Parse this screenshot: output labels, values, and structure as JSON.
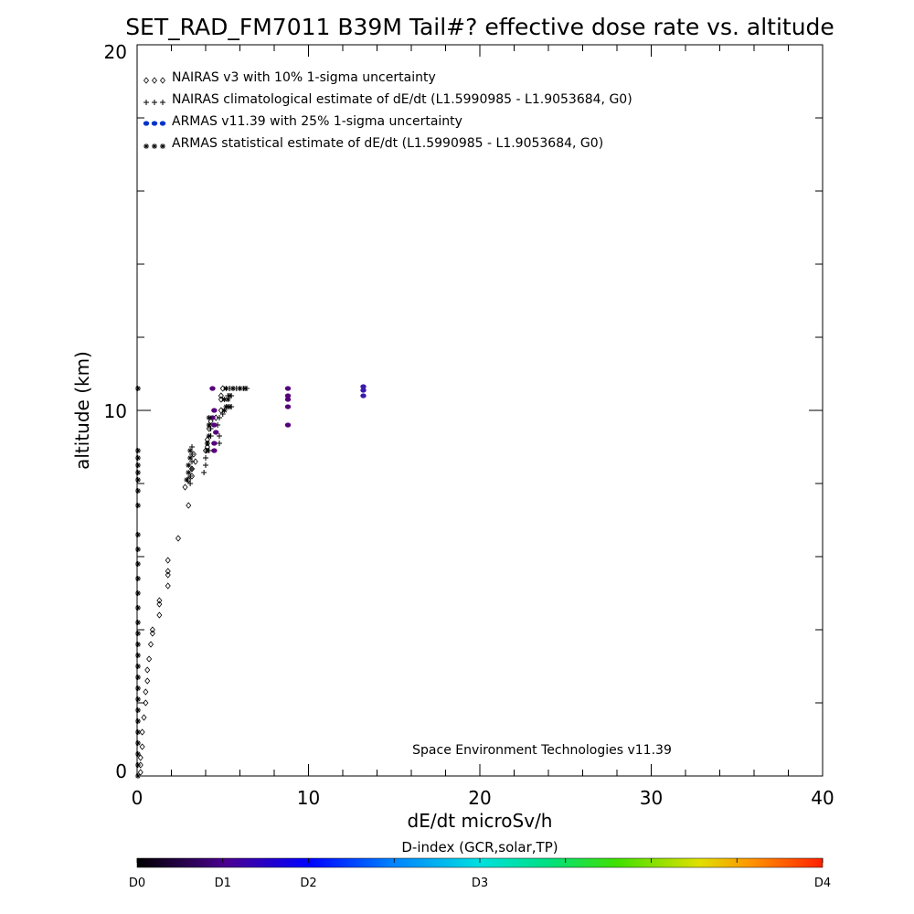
{
  "chart_data": {
    "type": "scatter",
    "title": "SET_RAD_FM7011  B39M Tail#? effective dose rate vs. altitude",
    "xlabel": "dE/dt microSv/h",
    "ylabel": "altitude (km)",
    "xlim": [
      0,
      40
    ],
    "ylim": [
      0,
      20
    ],
    "x_ticks": [
      "0",
      "10",
      "20",
      "30",
      "40"
    ],
    "y_ticks": [
      "0",
      "10",
      "20"
    ],
    "grid": false,
    "legend_position": "top-left",
    "annotation": "Space Environment Technologies v11.39",
    "series": [
      {
        "name": "NAIRAS v3 with 10% 1-sigma uncertainty",
        "marker": "diamond",
        "color": "#000000",
        "points": [
          [
            0.2,
            0.1
          ],
          [
            0.2,
            0.3
          ],
          [
            0.2,
            0.5
          ],
          [
            0.3,
            0.8
          ],
          [
            0.3,
            1.2
          ],
          [
            0.4,
            1.6
          ],
          [
            0.5,
            2.0
          ],
          [
            0.5,
            2.3
          ],
          [
            0.6,
            2.6
          ],
          [
            0.6,
            2.9
          ],
          [
            0.7,
            3.2
          ],
          [
            0.8,
            3.6
          ],
          [
            0.9,
            3.9
          ],
          [
            0.9,
            4.0
          ],
          [
            1.3,
            4.4
          ],
          [
            1.3,
            4.7
          ],
          [
            1.3,
            4.8
          ],
          [
            1.8,
            5.2
          ],
          [
            1.8,
            5.5
          ],
          [
            1.8,
            5.6
          ],
          [
            1.8,
            5.9
          ],
          [
            2.4,
            6.5
          ],
          [
            3.0,
            7.4
          ],
          [
            2.8,
            7.9
          ],
          [
            3.0,
            8.1
          ],
          [
            3.2,
            8.2
          ],
          [
            3.2,
            8.4
          ],
          [
            3.4,
            8.6
          ],
          [
            3.3,
            8.8
          ],
          [
            4.0,
            8.9
          ],
          [
            4.1,
            9.0
          ],
          [
            4.1,
            9.2
          ],
          [
            4.2,
            9.5
          ],
          [
            4.3,
            9.7
          ],
          [
            4.6,
            9.8
          ],
          [
            4.9,
            10.0
          ],
          [
            4.9,
            10.3
          ],
          [
            4.9,
            10.4
          ],
          [
            5.0,
            10.6
          ]
        ]
      },
      {
        "name": "NAIRAS climatological estimate of dE/dt (L1.5990985 - L1.9053684, G0)",
        "marker": "plus",
        "color": "#000000",
        "points": [
          [
            3.1,
            8.0
          ],
          [
            3.1,
            8.2
          ],
          [
            3.2,
            8.4
          ],
          [
            3.2,
            8.6
          ],
          [
            3.2,
            8.8
          ],
          [
            3.2,
            9.0
          ],
          [
            3.9,
            8.3
          ],
          [
            4.0,
            8.5
          ],
          [
            4.0,
            8.7
          ],
          [
            4.2,
            8.9
          ],
          [
            4.1,
            9.1
          ],
          [
            4.3,
            9.3
          ],
          [
            4.3,
            9.5
          ],
          [
            4.7,
            9.6
          ],
          [
            4.8,
            9.8
          ],
          [
            4.8,
            9.1
          ],
          [
            4.8,
            9.3
          ],
          [
            5.0,
            9.9
          ],
          [
            5.3,
            10.1
          ],
          [
            5.5,
            10.1
          ],
          [
            5.3,
            10.4
          ],
          [
            5.5,
            10.4
          ],
          [
            5.2,
            10.6
          ],
          [
            5.4,
            10.6
          ],
          [
            5.6,
            10.6
          ],
          [
            5.8,
            10.6
          ],
          [
            6.0,
            10.6
          ],
          [
            6.2,
            10.6
          ],
          [
            6.4,
            10.6
          ]
        ]
      },
      {
        "name": "ARMAS v11.39 with 25% 1-sigma uncertainty",
        "marker": "dot",
        "color": "#0033cc",
        "points": [
          [
            4.5,
            8.9
          ],
          [
            4.5,
            9.1
          ],
          [
            4.6,
            9.4
          ],
          [
            4.5,
            9.6
          ],
          [
            4.4,
            9.8
          ],
          [
            4.5,
            10.0
          ],
          [
            4.4,
            10.6
          ],
          [
            8.8,
            9.6
          ],
          [
            8.8,
            10.1
          ],
          [
            8.8,
            10.3
          ],
          [
            8.8,
            10.4
          ],
          [
            8.8,
            10.6
          ],
          [
            13.2,
            10.4
          ],
          [
            13.2,
            10.55
          ],
          [
            13.2,
            10.65
          ]
        ]
      },
      {
        "name": "ARMAS statistical estimate of dE/dt (L1.5990985 - L1.9053684, G0)",
        "marker": "asterisk",
        "color": "#000000",
        "points": [
          [
            0.05,
            0.0
          ],
          [
            0.05,
            0.3
          ],
          [
            0.05,
            0.6
          ],
          [
            0.05,
            0.9
          ],
          [
            0.05,
            1.2
          ],
          [
            0.05,
            1.5
          ],
          [
            0.05,
            1.8
          ],
          [
            0.05,
            2.1
          ],
          [
            0.05,
            2.4
          ],
          [
            0.05,
            2.7
          ],
          [
            0.05,
            3.0
          ],
          [
            0.05,
            3.3
          ],
          [
            0.05,
            3.6
          ],
          [
            0.05,
            3.9
          ],
          [
            0.05,
            4.2
          ],
          [
            0.05,
            4.6
          ],
          [
            0.05,
            5.0
          ],
          [
            0.05,
            5.4
          ],
          [
            0.05,
            5.8
          ],
          [
            0.05,
            6.2
          ],
          [
            0.05,
            6.6
          ],
          [
            0.05,
            7.4
          ],
          [
            0.05,
            7.8
          ],
          [
            0.05,
            8.1
          ],
          [
            0.05,
            8.3
          ],
          [
            0.05,
            8.5
          ],
          [
            0.05,
            8.7
          ],
          [
            0.05,
            8.9
          ],
          [
            0.05,
            10.6
          ],
          [
            2.9,
            8.1
          ],
          [
            3.0,
            8.3
          ],
          [
            3.0,
            8.5
          ],
          [
            3.1,
            8.7
          ],
          [
            3.1,
            8.9
          ],
          [
            4.1,
            8.9
          ],
          [
            4.1,
            9.1
          ],
          [
            4.2,
            9.3
          ],
          [
            4.2,
            9.6
          ],
          [
            4.2,
            9.8
          ],
          [
            5.1,
            10.0
          ],
          [
            5.2,
            10.1
          ],
          [
            5.4,
            10.1
          ],
          [
            5.1,
            10.3
          ],
          [
            5.3,
            10.3
          ],
          [
            5.4,
            10.4
          ],
          [
            5.2,
            10.6
          ],
          [
            5.6,
            10.6
          ],
          [
            6.0,
            10.6
          ],
          [
            6.3,
            10.6
          ]
        ]
      }
    ],
    "colorbar": {
      "title": "D-index (GCR,solar,TP)",
      "labels": [
        {
          "text": "D0",
          "pos": 0.0
        },
        {
          "text": "D1",
          "pos": 0.125
        },
        {
          "text": "D2",
          "pos": 0.25
        },
        {
          "text": "D3",
          "pos": 0.5
        },
        {
          "text": "D4",
          "pos": 1.0
        }
      ],
      "color_stops": [
        {
          "pos": 0.0,
          "color": "#000000"
        },
        {
          "pos": 0.13,
          "color": "#4b0090"
        },
        {
          "pos": 0.25,
          "color": "#0000ff"
        },
        {
          "pos": 0.37,
          "color": "#0080ff"
        },
        {
          "pos": 0.5,
          "color": "#00e0e0"
        },
        {
          "pos": 0.6,
          "color": "#00e080"
        },
        {
          "pos": 0.7,
          "color": "#40e000"
        },
        {
          "pos": 0.82,
          "color": "#e0e000"
        },
        {
          "pos": 0.9,
          "color": "#ff9000"
        },
        {
          "pos": 1.0,
          "color": "#ff2000"
        }
      ]
    }
  }
}
